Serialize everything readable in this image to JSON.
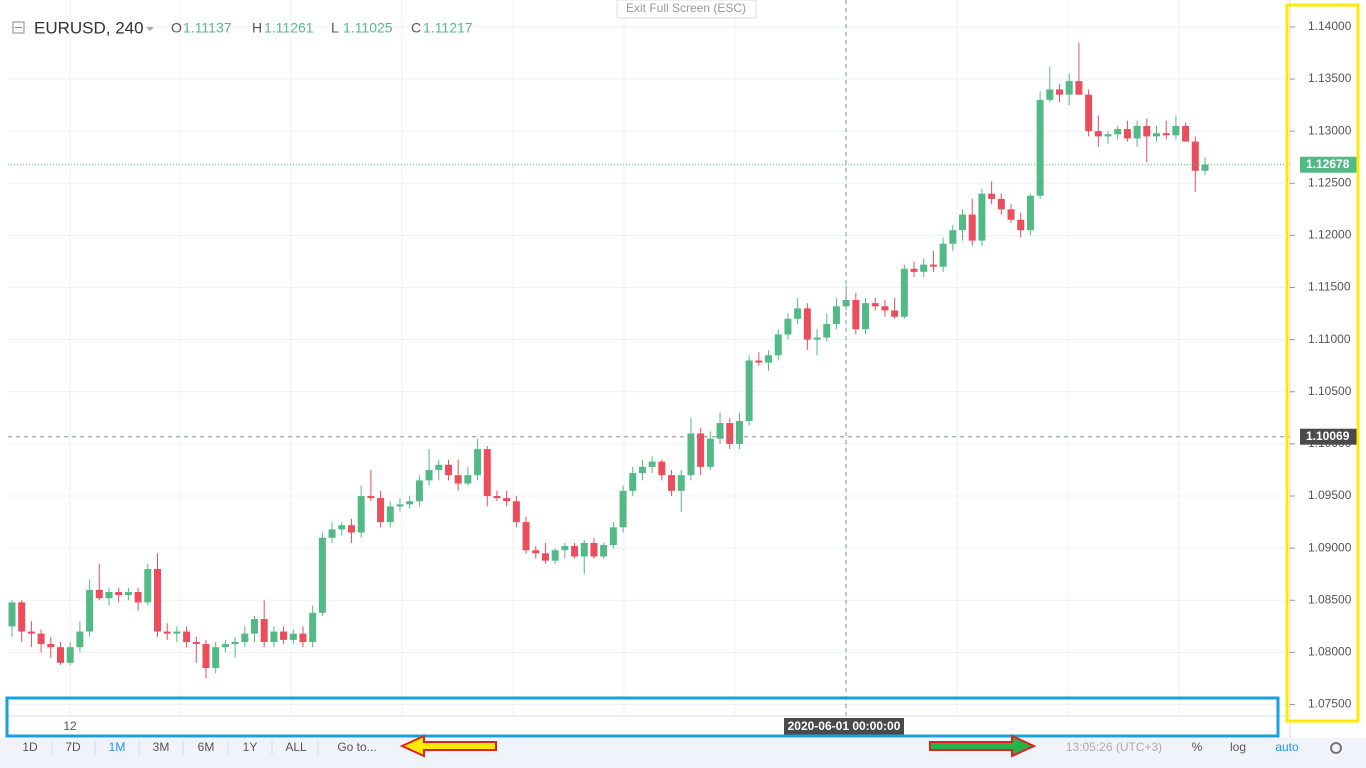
{
  "chart_data": {
    "type": "candlestick",
    "title": "EURUSD, 240",
    "header_ohlc": [
      {
        "label": "O",
        "value": 1.11137
      },
      {
        "label": "H",
        "value": 1.11261
      },
      {
        "label": "L",
        "value": 1.11025
      },
      {
        "label": "C",
        "value": 1.11217
      }
    ],
    "up_color": "#53b987",
    "down_color": "#eb4d5c",
    "ylim": [
      1.0739,
      1.1421
    ],
    "yticks": [
      {
        "value": 1.075,
        "label": "1.07500"
      },
      {
        "value": 1.08,
        "label": "1.08000"
      },
      {
        "value": 1.085,
        "label": "1.08500"
      },
      {
        "value": 1.09,
        "label": "1.09000"
      },
      {
        "value": 1.095,
        "label": "1.09500"
      },
      {
        "value": 1.1,
        "label": "1.10000"
      },
      {
        "value": 1.105,
        "label": "1.10500"
      },
      {
        "value": 1.11,
        "label": "1.11000"
      },
      {
        "value": 1.115,
        "label": "1.11500"
      },
      {
        "value": 1.12,
        "label": "1.12000"
      },
      {
        "value": 1.125,
        "label": "1.12500"
      },
      {
        "value": 1.13,
        "label": "1.13000"
      },
      {
        "value": 1.135,
        "label": "1.13500"
      },
      {
        "value": 1.14,
        "label": "1.14000"
      }
    ],
    "grid": true,
    "last_price": 1.12678,
    "crosshair_price": 1.10069,
    "crosshair_time": "2020-06-01 00:00:00",
    "time_labels": [
      "12"
    ],
    "open": [
      1.0825,
      1.0848,
      1.082,
      1.0818,
      1.0808,
      1.0805,
      1.079,
      1.0805,
      1.082,
      1.086,
      1.0852,
      1.0858,
      1.0855,
      1.0858,
      1.0848,
      1.088,
      1.082,
      1.0818,
      1.082,
      1.081,
      1.0808,
      1.0785,
      1.0805,
      1.0808,
      1.081,
      1.0818,
      1.0832,
      1.081,
      1.082,
      1.0812,
      1.0818,
      1.081,
      1.0838,
      1.091,
      1.0918,
      1.0922,
      1.0915,
      1.095,
      1.0948,
      1.0925,
      1.094,
      1.0942,
      1.0945,
      1.0965,
      1.0975,
      1.098,
      1.097,
      1.0962,
      1.097,
      1.0995,
      1.095,
      1.0948,
      1.0945,
      1.0925,
      1.0898,
      1.0895,
      1.0888,
      1.0898,
      1.0902,
      1.0892,
      1.0905,
      1.0892,
      1.0903,
      1.092,
      1.0955,
      1.0972,
      1.0978,
      1.0983,
      1.097,
      1.0955,
      1.097,
      1.101,
      1.0978,
      1.1005,
      1.102,
      1.1,
      1.1022,
      1.108,
      1.1078,
      1.1085,
      1.1105,
      1.112,
      1.113,
      1.11,
      1.1102,
      1.1115,
      1.1132,
      1.1138,
      1.111,
      1.1135,
      1.1132,
      1.1128,
      1.1122,
      1.1168,
      1.1165,
      1.1172,
      1.117,
      1.1192,
      1.1205,
      1.122,
      1.1195,
      1.124,
      1.1235,
      1.1225,
      1.1215,
      1.1205,
      1.1238,
      1.133,
      1.134,
      1.1335,
      1.1348,
      1.1335,
      1.13,
      1.1295,
      1.1297,
      1.1302,
      1.1293,
      1.1305,
      1.1295,
      1.1298,
      1.1296,
      1.1305,
      1.129,
      1.1262
    ],
    "high": [
      1.085,
      1.085,
      1.083,
      1.0822,
      1.0815,
      1.081,
      1.081,
      1.083,
      1.087,
      1.0885,
      1.0862,
      1.0862,
      1.0862,
      1.0862,
      1.0885,
      1.0895,
      1.0828,
      1.0825,
      1.0825,
      1.0815,
      1.0812,
      1.081,
      1.0812,
      1.0815,
      1.0825,
      1.0835,
      1.085,
      1.0825,
      1.0825,
      1.0822,
      1.0825,
      1.0845,
      1.0915,
      1.0925,
      1.0925,
      1.0928,
      1.096,
      1.0975,
      1.0955,
      1.0945,
      1.0948,
      1.095,
      1.097,
      1.0995,
      1.0985,
      1.0985,
      1.0985,
      1.0978,
      1.1005,
      1.0998,
      1.0955,
      1.0955,
      1.095,
      1.093,
      1.0902,
      1.0905,
      1.09,
      1.0905,
      1.0905,
      1.0908,
      1.091,
      1.0905,
      1.0925,
      1.096,
      1.0978,
      1.0985,
      1.0988,
      1.0985,
      1.0975,
      1.0975,
      1.1025,
      1.1015,
      1.1012,
      1.103,
      1.1025,
      1.103,
      1.1085,
      1.1088,
      1.109,
      1.111,
      1.1125,
      1.114,
      1.1135,
      1.111,
      1.1125,
      1.114,
      1.1152,
      1.1145,
      1.114,
      1.114,
      1.1138,
      1.114,
      1.1172,
      1.1175,
      1.1178,
      1.1185,
      1.1198,
      1.121,
      1.1225,
      1.1235,
      1.1245,
      1.1252,
      1.124,
      1.123,
      1.1222,
      1.124,
      1.1338,
      1.1362,
      1.1345,
      1.1355,
      1.1385,
      1.134,
      1.1315,
      1.13,
      1.1305,
      1.131,
      1.131,
      1.1312,
      1.1305,
      1.131,
      1.1315,
      1.1308,
      1.1295,
      1.1275
    ],
    "low": [
      1.0815,
      1.081,
      1.0805,
      1.08,
      1.0795,
      1.0788,
      1.0788,
      1.08,
      1.0815,
      1.085,
      1.0845,
      1.0848,
      1.085,
      1.084,
      1.0845,
      1.0815,
      1.0812,
      1.081,
      1.0805,
      1.079,
      1.0775,
      1.078,
      1.08,
      1.0795,
      1.0805,
      1.081,
      1.0805,
      1.0805,
      1.0808,
      1.0808,
      1.0805,
      1.0805,
      1.0835,
      1.0905,
      1.0912,
      1.0905,
      1.091,
      1.0945,
      1.092,
      1.092,
      1.0935,
      1.0938,
      1.094,
      1.096,
      1.0965,
      1.0965,
      1.0955,
      1.096,
      1.0965,
      1.094,
      1.0945,
      1.094,
      1.092,
      1.0895,
      1.089,
      1.0885,
      1.0885,
      1.089,
      1.089,
      1.0875,
      1.089,
      1.089,
      1.09,
      1.0915,
      1.095,
      1.0965,
      1.0972,
      1.0965,
      1.095,
      1.0935,
      1.0965,
      1.097,
      1.0975,
      1.1,
      1.0995,
      1.0995,
      1.1018,
      1.1075,
      1.107,
      1.108,
      1.11,
      1.1115,
      1.109,
      1.1085,
      1.1098,
      1.111,
      1.1128,
      1.1105,
      1.1105,
      1.1128,
      1.1122,
      1.112,
      1.112,
      1.116,
      1.116,
      1.1165,
      1.1165,
      1.1185,
      1.1195,
      1.119,
      1.119,
      1.123,
      1.122,
      1.1212,
      1.1198,
      1.12,
      1.1235,
      1.1328,
      1.1328,
      1.1325,
      1.1335,
      1.1295,
      1.1285,
      1.1288,
      1.1292,
      1.129,
      1.1285,
      1.127,
      1.129,
      1.1292,
      1.1292,
      1.129,
      1.1242,
      1.1258
    ],
    "close": [
      1.0848,
      1.082,
      1.0818,
      1.0808,
      1.0805,
      1.079,
      1.0805,
      1.082,
      1.086,
      1.0852,
      1.0858,
      1.0855,
      1.0858,
      1.0848,
      1.088,
      1.082,
      1.0818,
      1.082,
      1.081,
      1.0808,
      1.0785,
      1.0805,
      1.0808,
      1.081,
      1.0818,
      1.0832,
      1.081,
      1.082,
      1.0812,
      1.0818,
      1.081,
      1.0838,
      1.091,
      1.0918,
      1.0922,
      1.0915,
      1.095,
      1.0948,
      1.0925,
      1.094,
      1.0942,
      1.0945,
      1.0965,
      1.0975,
      1.098,
      1.097,
      1.0962,
      1.097,
      1.0995,
      1.095,
      1.0948,
      1.0945,
      1.0925,
      1.0898,
      1.0895,
      1.0888,
      1.0898,
      1.0902,
      1.0892,
      1.0905,
      1.0892,
      1.0903,
      1.092,
      1.0955,
      1.0972,
      1.0978,
      1.0983,
      1.097,
      1.0955,
      1.097,
      1.101,
      1.0978,
      1.1005,
      1.102,
      1.1,
      1.1022,
      1.108,
      1.1078,
      1.1085,
      1.1105,
      1.112,
      1.113,
      1.11,
      1.1102,
      1.1115,
      1.1132,
      1.1138,
      1.111,
      1.1135,
      1.1132,
      1.1128,
      1.1122,
      1.1168,
      1.1165,
      1.1172,
      1.117,
      1.1192,
      1.1205,
      1.122,
      1.1195,
      1.124,
      1.1235,
      1.1225,
      1.1215,
      1.1205,
      1.1238,
      1.133,
      1.134,
      1.1335,
      1.1348,
      1.1335,
      1.13,
      1.1295,
      1.1297,
      1.1302,
      1.1293,
      1.1305,
      1.1295,
      1.1298,
      1.1296,
      1.1305,
      1.129,
      1.1262,
      1.1268
    ]
  },
  "toolbar": {
    "exit_fullscreen": "Exit Full Screen (ESC)",
    "ranges": [
      "1D",
      "7D",
      "1M",
      "3M",
      "6M",
      "1Y",
      "ALL"
    ],
    "active_range": "1M",
    "goto": "Go to...",
    "clock": "13:05:26 (UTC+3)",
    "percent": "%",
    "log": "log",
    "auto": "auto"
  }
}
